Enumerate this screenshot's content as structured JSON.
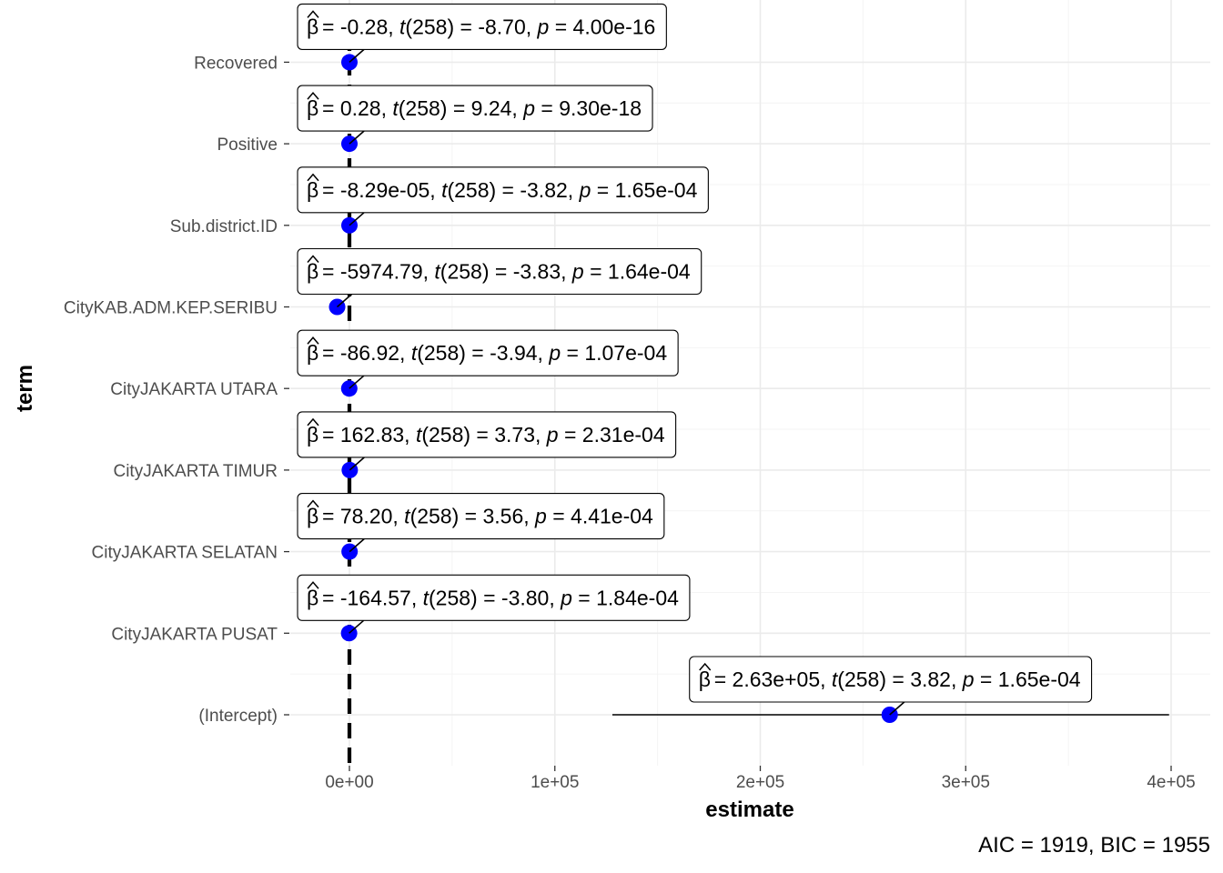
{
  "chart_data": {
    "type": "scatter",
    "title": "",
    "xlabel": "estimate",
    "ylabel": "term",
    "xlim": [
      -28000,
      412000
    ],
    "x_ticks": [
      {
        "value": 0,
        "label": "0e+00"
      },
      {
        "value": 100000,
        "label": "1e+05"
      },
      {
        "value": 200000,
        "label": "2e+05"
      },
      {
        "value": 300000,
        "label": "3e+05"
      },
      {
        "value": 400000,
        "label": "4e+05"
      }
    ],
    "reference_line": {
      "x": 0,
      "style": "dashed"
    },
    "grid": true,
    "point_color": "#0000ff",
    "terms": [
      {
        "term": "(Intercept)",
        "estimate": 263000,
        "ci_low": 128000,
        "ci_high": 399000,
        "beta": "2.63e+05",
        "t": "3.82",
        "p": "1.65e-04"
      },
      {
        "term": "CityJAKARTA PUSAT",
        "estimate": -164.57,
        "ci_low": -250,
        "ci_high": -80,
        "beta": "-164.57",
        "t": "-3.80",
        "p": "1.84e-04"
      },
      {
        "term": "CityJAKARTA SELATAN",
        "estimate": 78.2,
        "ci_low": 35,
        "ci_high": 121,
        "beta": "78.20",
        "t": "3.56",
        "p": "4.41e-04"
      },
      {
        "term": "CityJAKARTA TIMUR",
        "estimate": 162.83,
        "ci_low": 77,
        "ci_high": 249,
        "beta": "162.83",
        "t": "3.73",
        "p": "2.31e-04"
      },
      {
        "term": "CityJAKARTA UTARA",
        "estimate": -86.92,
        "ci_low": -130,
        "ci_high": -44,
        "beta": "-86.92",
        "t": "-3.94",
        "p": "1.07e-04"
      },
      {
        "term": "CityKAB.ADM.KEP.SERIBU",
        "estimate": -5974.79,
        "ci_low": -9050,
        "ci_high": -2900,
        "beta": "-5974.79",
        "t": "-3.83",
        "p": "1.64e-04"
      },
      {
        "term": "Sub.district.ID",
        "estimate": -8.29e-05,
        "ci_low": -0.00013,
        "ci_high": -4e-05,
        "beta": "-8.29e-05",
        "t": "-3.82",
        "p": "1.65e-04"
      },
      {
        "term": "Positive",
        "estimate": 0.28,
        "ci_low": 0.22,
        "ci_high": 0.34,
        "beta": "0.28",
        "t": "9.24",
        "p": "9.30e-18"
      },
      {
        "term": "Recovered",
        "estimate": -0.28,
        "ci_low": -0.34,
        "ci_high": -0.22,
        "beta": "-0.28",
        "t": "-8.70",
        "p": "4.00e-16"
      }
    ],
    "df": "258",
    "caption": {
      "aic": "1919",
      "bic": "1955"
    }
  }
}
